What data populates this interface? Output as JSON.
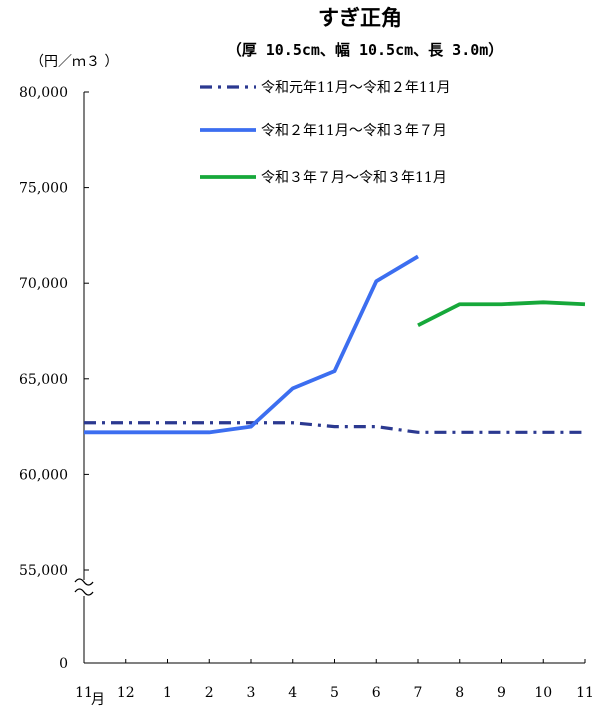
{
  "chart_data": {
    "type": "line",
    "title": "すぎ正角",
    "subtitle": "（厚 10.5cm、幅 10.5cm、長 3.0m）",
    "ylabel": "（円／ｍ３ ）",
    "x": [
      "11",
      "12",
      "1",
      "2",
      "3",
      "4",
      "5",
      "6",
      "7",
      "8",
      "9",
      "10",
      "11"
    ],
    "x_unit": "月",
    "yticks": [
      "0",
      "55,000",
      "60,000",
      "65,000",
      "70,000",
      "75,000",
      "80,000"
    ],
    "ylim": [
      55000,
      80000
    ],
    "axis_break": true,
    "series": [
      {
        "name": "令和元年11月～令和２年11月",
        "color": "#2B3990",
        "style": "dash-dot",
        "values": [
          62700,
          62700,
          62700,
          62700,
          62700,
          62700,
          62500,
          62500,
          62200,
          62200,
          62200,
          62200,
          62200
        ]
      },
      {
        "name": "令和２年11月～令和３年７月",
        "color": "#3C6EF0",
        "style": "solid",
        "values": [
          62200,
          62200,
          62200,
          62200,
          62500,
          64500,
          65400,
          70100,
          71400,
          null,
          null,
          null,
          null
        ]
      },
      {
        "name": "令和３年７月～令和３年11月",
        "color": "#16A83A",
        "style": "solid",
        "values": [
          null,
          null,
          null,
          null,
          null,
          null,
          null,
          null,
          67800,
          68900,
          68900,
          69000,
          68900
        ]
      }
    ],
    "legend_position": "top"
  }
}
